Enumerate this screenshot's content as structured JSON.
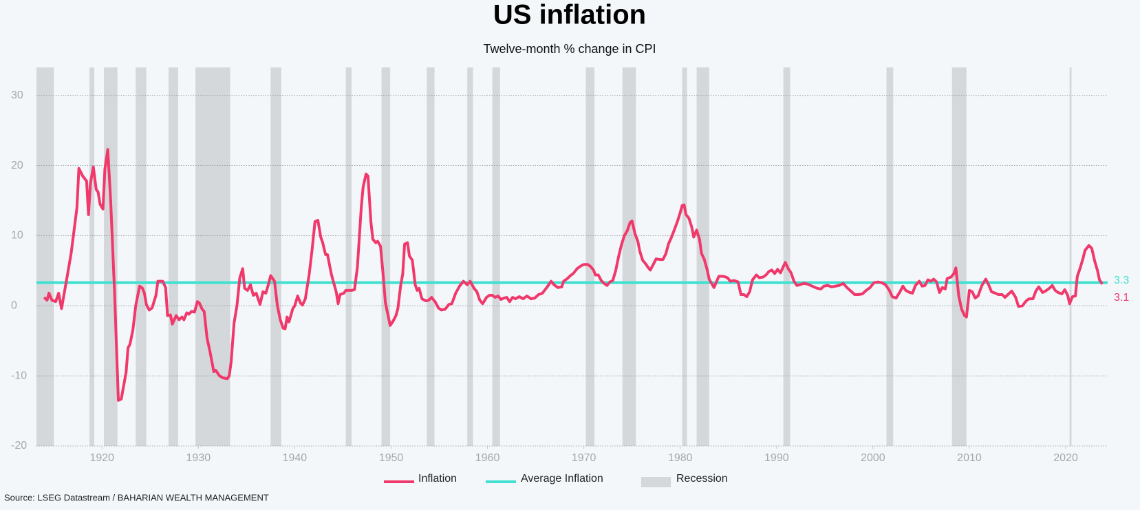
{
  "chart_data": {
    "type": "line",
    "title": "US inflation",
    "subtitle": "Twelve-month % change in CPI",
    "source": "Source: LSEG Datastream / BAHARIAN WEALTH MANAGEMENT",
    "xlim": [
      1913.2,
      2024.35
    ],
    "xticks": [
      1920,
      1930,
      1940,
      1950,
      1960,
      1970,
      1980,
      1990,
      2000,
      2010,
      2020
    ],
    "ylim": [
      -20,
      34
    ],
    "yticks": [
      -20,
      -10,
      0,
      10,
      20,
      30
    ],
    "grid": true,
    "x": [
      1914,
      1914.3,
      1914.5,
      1914.8,
      1915.2,
      1915.5,
      1915.8,
      1916.3,
      1916.8,
      1917.4,
      1917.6,
      1918,
      1918.4,
      1918.6,
      1918.8,
      1919.1,
      1919.4,
      1919.6,
      1919.8,
      1920.1,
      1920.3,
      1920.6,
      1920.9,
      1921.3,
      1921.7,
      1922,
      1922.5,
      1922.7,
      1922.9,
      1923.2,
      1923.5,
      1923.9,
      1924.2,
      1924.4,
      1924.6,
      1924.9,
      1925.2,
      1925.6,
      1925.8,
      1926.3,
      1926.6,
      1926.8,
      1927.1,
      1927.3,
      1927.7,
      1928,
      1928.3,
      1928.5,
      1928.8,
      1929,
      1929.3,
      1929.6,
      1929.9,
      1930.1,
      1930.4,
      1930.6,
      1930.9,
      1931.2,
      1931.6,
      1931.8,
      1932.2,
      1932.6,
      1933,
      1933.2,
      1933.4,
      1933.7,
      1934,
      1934.3,
      1934.6,
      1934.8,
      1935.1,
      1935.4,
      1935.7,
      1936,
      1936.4,
      1936.7,
      1937,
      1937.3,
      1937.5,
      1937.9,
      1938.2,
      1938.5,
      1938.8,
      1939,
      1939.2,
      1939.4,
      1939.8,
      1940,
      1940.3,
      1940.6,
      1940.8,
      1941.1,
      1941.5,
      1941.8,
      1942.1,
      1942.4,
      1942.7,
      1942.9,
      1943.2,
      1943.4,
      1943.8,
      1944.1,
      1944.3,
      1944.5,
      1944.7,
      1945.1,
      1945.3,
      1945.9,
      1946.2,
      1946.5,
      1946.9,
      1947.1,
      1947.4,
      1947.6,
      1947.9,
      1948.1,
      1948.4,
      1948.6,
      1948.9,
      1949.2,
      1949.4,
      1949.7,
      1949.9,
      1950.2,
      1950.5,
      1950.7,
      1951,
      1951.2,
      1951.4,
      1951.7,
      1951.9,
      1952.2,
      1952.5,
      1952.7,
      1952.9,
      1953.2,
      1953.6,
      1953.9,
      1954.2,
      1954.6,
      1954.9,
      1955.2,
      1955.6,
      1956,
      1956.3,
      1956.7,
      1957.1,
      1957.5,
      1957.9,
      1958.2,
      1958.6,
      1958.9,
      1959.2,
      1959.5,
      1959.9,
      1960.2,
      1960.5,
      1960.8,
      1961.1,
      1961.4,
      1961.7,
      1962,
      1962.3,
      1962.6,
      1962.9,
      1963.3,
      1963.7,
      1964.1,
      1964.5,
      1964.9,
      1965.3,
      1965.7,
      1966.2,
      1966.6,
      1966.9,
      1967.3,
      1967.7,
      1967.9,
      1968.3,
      1968.6,
      1968.9,
      1969.3,
      1969.7,
      1970,
      1970.4,
      1970.7,
      1971,
      1971.2,
      1971.5,
      1971.8,
      1972.1,
      1972.4,
      1972.7,
      1973,
      1973.3,
      1973.6,
      1973.9,
      1974.2,
      1974.5,
      1974.8,
      1975,
      1975.3,
      1975.6,
      1975.8,
      1976.1,
      1976.4,
      1976.7,
      1976.9,
      1977.2,
      1977.5,
      1977.9,
      1978.2,
      1978.5,
      1978.8,
      1979.1,
      1979.4,
      1979.7,
      1980,
      1980.2,
      1980.4,
      1980.6,
      1980.9,
      1981.2,
      1981.4,
      1981.7,
      1982,
      1982.2,
      1982.5,
      1982.8,
      1983,
      1983.5,
      1984,
      1984.5,
      1984.9,
      1985.2,
      1985.6,
      1986,
      1986.3,
      1986.6,
      1986.9,
      1987.2,
      1987.5,
      1987.9,
      1988.2,
      1988.6,
      1988.9,
      1989.2,
      1989.5,
      1989.8,
      1990.1,
      1990.4,
      1990.7,
      1990.9,
      1991.2,
      1991.5,
      1991.8,
      1992.1,
      1992.4,
      1992.8,
      1993.2,
      1993.7,
      1994.2,
      1994.6,
      1994.9,
      1995.3,
      1995.7,
      1996.1,
      1996.5,
      1996.9,
      1997.3,
      1997.7,
      1998.1,
      1998.5,
      1998.9,
      1999.3,
      1999.7,
      2000.1,
      2000.5,
      2000.9,
      2001.3,
      2001.7,
      2002,
      2002.4,
      2002.8,
      2003.1,
      2003.4,
      2003.8,
      2004.1,
      2004.4,
      2004.8,
      2005.1,
      2005.4,
      2005.7,
      2006,
      2006.3,
      2006.6,
      2006.9,
      2007.2,
      2007.5,
      2007.7,
      2008.1,
      2008.4,
      2008.6,
      2008.9,
      2009.2,
      2009.5,
      2009.7,
      2010,
      2010.3,
      2010.6,
      2010.9,
      2011.3,
      2011.7,
      2012,
      2012.3,
      2012.7,
      2013,
      2013.4,
      2013.7,
      2014,
      2014.4,
      2014.8,
      2015.1,
      2015.5,
      2015.9,
      2016.2,
      2016.6,
      2016.9,
      2017.2,
      2017.6,
      2017.9,
      2018.3,
      2018.6,
      2018.9,
      2019.2,
      2019.6,
      2019.9,
      2020.2,
      2020.4,
      2020.7,
      2021,
      2021.2,
      2021.5,
      2021.8,
      2022,
      2022.4,
      2022.7,
      2023,
      2023.3,
      2023.5,
      2023.8
    ],
    "series": [
      {
        "name": "Inflation",
        "color": "#f0386b",
        "values": [
          1.2,
          0.8,
          1.8,
          0.8,
          0.6,
          1.8,
          -0.4,
          3.5,
          7.5,
          14,
          19.6,
          18.5,
          17.8,
          13,
          17.5,
          19.8,
          16.6,
          16.2,
          14.5,
          13.8,
          19.5,
          22.3,
          15,
          2,
          -13.5,
          -13.3,
          -9.5,
          -6,
          -5.5,
          -3.5,
          0,
          2.8,
          2.5,
          1.8,
          0.2,
          -0.6,
          -0.3,
          1.5,
          3.5,
          3.5,
          2.6,
          -1.4,
          -1.3,
          -2.6,
          -1.4,
          -2,
          -1.6,
          -2,
          -1,
          -1.2,
          -0.8,
          -0.9,
          0.6,
          0.4,
          -0.5,
          -0.8,
          -4.6,
          -6.5,
          -9.4,
          -9.2,
          -10,
          -10.3,
          -10.4,
          -10,
          -8,
          -2.5,
          0,
          4,
          5.3,
          2.5,
          2.2,
          3,
          1.5,
          1.8,
          0.2,
          2,
          1.8,
          3.2,
          4.3,
          3.5,
          0,
          -2,
          -3.2,
          -3.3,
          -1.6,
          -2.3,
          -0.4,
          0,
          1.4,
          0.4,
          0.1,
          1,
          4.5,
          8,
          12,
          12.2,
          9.8,
          9,
          7.3,
          7.3,
          4.5,
          3,
          2,
          0.3,
          1.6,
          1.8,
          2.2,
          2.2,
          2.3,
          5.5,
          14,
          17,
          18.8,
          18.5,
          12,
          9.5,
          9,
          9.2,
          8.5,
          4,
          0.5,
          -1.5,
          -2.8,
          -2.2,
          -1.4,
          -0.4,
          3,
          4.5,
          8.8,
          9,
          7.1,
          6.5,
          3,
          2.2,
          2.5,
          1,
          0.7,
          0.8,
          1.2,
          0.5,
          -0.3,
          -0.6,
          -0.5,
          0.2,
          0.3,
          1.8,
          2.8,
          3.5,
          3,
          3.5,
          2.5,
          2,
          0.8,
          0.3,
          1.2,
          1.5,
          1.5,
          1.2,
          1.4,
          0.9,
          1.1,
          1.2,
          0.6,
          1.2,
          1,
          1.3,
          1,
          1.4,
          1,
          1.1,
          1.6,
          1.8,
          2.7,
          3.5,
          3,
          2.6,
          2.7,
          3.5,
          3.9,
          4.3,
          4.6,
          5.3,
          5.7,
          5.9,
          5.9,
          5.6,
          5.1,
          4.4,
          4.4,
          3.6,
          3.2,
          2.9,
          3.4,
          3.6,
          5,
          7,
          8.7,
          10,
          10.7,
          11.9,
          12.1,
          10.3,
          9.2,
          7.8,
          6.5,
          6,
          5.4,
          5.1,
          5.9,
          6.7,
          6.6,
          6.6,
          7.4,
          8.9,
          9.8,
          10.9,
          12,
          13.3,
          14.3,
          14.4,
          13,
          12.5,
          11.2,
          9.8,
          10.8,
          9.5,
          7.5,
          6.6,
          5.1,
          3.8,
          2.6,
          4.2,
          4.2,
          4,
          3.5,
          3.6,
          3.4,
          1.6,
          1.6,
          1.3,
          2,
          3.7,
          4.4,
          4,
          4.1,
          4.4,
          4.9,
          5.1,
          4.6,
          5.2,
          4.7,
          5.6,
          6.2,
          5.3,
          4.7,
          3.5,
          2.9,
          3,
          3.2,
          3.1,
          2.8,
          2.5,
          2.4,
          2.8,
          2.9,
          2.7,
          2.8,
          2.9,
          3.2,
          2.6,
          2.1,
          1.6,
          1.6,
          1.7,
          2.2,
          2.6,
          3.3,
          3.4,
          3.3,
          3,
          2.2,
          1.3,
          1.1,
          2,
          2.8,
          2.2,
          1.9,
          1.8,
          2.9,
          3.5,
          2.8,
          2.9,
          3.7,
          3.5,
          3.8,
          3.4,
          1.9,
          2.6,
          2.4,
          3.9,
          4.1,
          4.6,
          5.4,
          1.4,
          -0.5,
          -1.4,
          -1.6,
          2.2,
          2,
          1.1,
          1.4,
          2.9,
          3.8,
          3,
          2,
          1.8,
          1.6,
          1.6,
          1.2,
          1.6,
          2.1,
          1.2,
          -0.1,
          0,
          0.7,
          1,
          1,
          2.1,
          2.7,
          1.9,
          2.1,
          2.5,
          2.9,
          2.2,
          1.9,
          1.7,
          2.3,
          1.5,
          0.3,
          1.3,
          1.4,
          4.2,
          5.4,
          6.8,
          7.9,
          8.6,
          8.2,
          6.4,
          5,
          3.7,
          3.1
        ]
      }
    ],
    "average": {
      "name": "Average Inflation",
      "color": "#40e0d0",
      "value": 3.3
    },
    "recessions": {
      "name": "Recession",
      "color": "#d5d8da",
      "periods": [
        [
          1913.2,
          1915.0
        ],
        [
          1918.7,
          1919.2
        ],
        [
          1920.2,
          1921.6
        ],
        [
          1923.5,
          1924.6
        ],
        [
          1926.9,
          1927.9
        ],
        [
          1929.7,
          1933.3
        ],
        [
          1937.5,
          1938.6
        ],
        [
          1945.3,
          1945.9
        ],
        [
          1949.0,
          1949.9
        ],
        [
          1953.7,
          1954.5
        ],
        [
          1957.9,
          1958.5
        ],
        [
          1960.5,
          1961.3
        ],
        [
          1970.2,
          1971.1
        ],
        [
          1974.0,
          1975.4
        ],
        [
          1980.2,
          1980.7
        ],
        [
          1981.7,
          1983.0
        ],
        [
          1990.7,
          1991.4
        ],
        [
          2001.4,
          2002.1
        ],
        [
          2008.2,
          2009.7
        ],
        [
          2020.4,
          2020.6
        ]
      ]
    }
  }
}
